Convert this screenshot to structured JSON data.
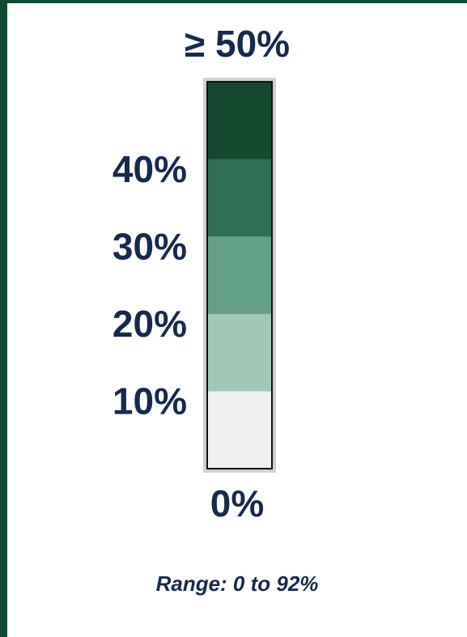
{
  "legend": {
    "top_label": "≥ 50%",
    "labels": [
      "40%",
      "30%",
      "20%",
      "10%"
    ],
    "bottom_label": "0%",
    "colors": [
      "#134a30",
      "#2f7055",
      "#63a085",
      "#a0c8b7",
      "#f0f0f0"
    ],
    "note": "Range: 0 to 92%"
  }
}
